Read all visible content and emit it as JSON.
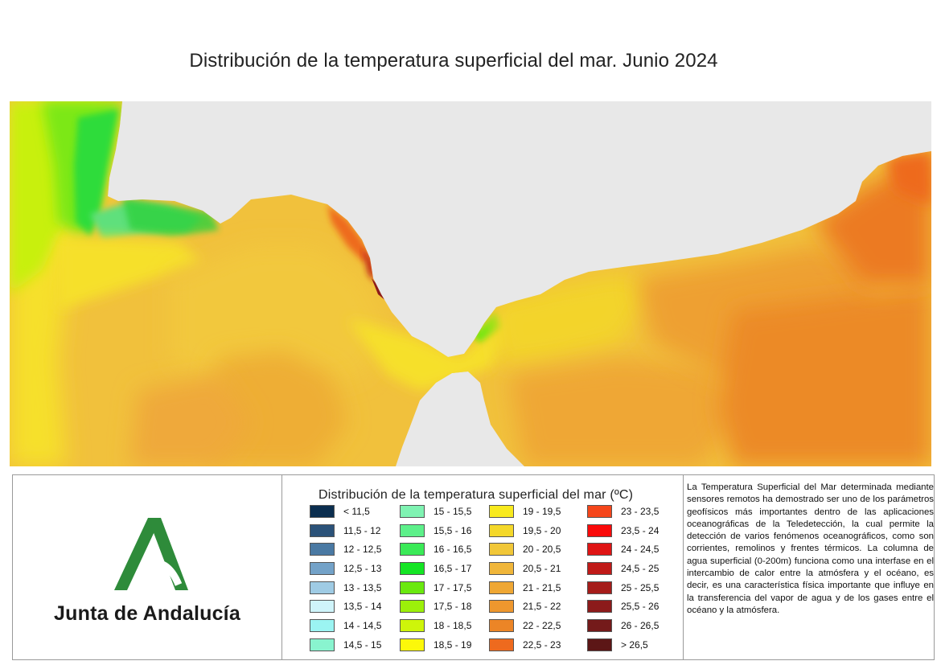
{
  "title": "Distribución de la temperatura superficial del mar. Junio 2024",
  "colors": {
    "land": "#e8e8e8",
    "base_sea": "#f1bf3a",
    "accent_green": "#2e8b3a"
  },
  "legend": {
    "title": "Distribución de la temperatura superficial del mar (ºC)",
    "columns": [
      [
        {
          "label": "< 11,5",
          "color": "#0b2e4f"
        },
        {
          "label": "11,5 - 12",
          "color": "#2b5279"
        },
        {
          "label": "12 - 12,5",
          "color": "#4a79a3"
        },
        {
          "label": "12,5 - 13",
          "color": "#73a2c8"
        },
        {
          "label": "13 - 13,5",
          "color": "#9fcbe4"
        },
        {
          "label": "13,5 - 14",
          "color": "#cff4fa"
        },
        {
          "label": "14 - 14,5",
          "color": "#9bf4f2"
        },
        {
          "label": "14,5 - 15",
          "color": "#89f4cf"
        }
      ],
      [
        {
          "label": "15 - 15,5",
          "color": "#7ff3b2"
        },
        {
          "label": "15,5 - 16",
          "color": "#5df08a"
        },
        {
          "label": "16 - 16,5",
          "color": "#3aea57"
        },
        {
          "label": "16,5 - 17",
          "color": "#14e524"
        },
        {
          "label": "17 - 17,5",
          "color": "#6ae90f"
        },
        {
          "label": "17,5 - 18",
          "color": "#9cf00a"
        },
        {
          "label": "18 - 18,5",
          "color": "#cef50a"
        },
        {
          "label": "18,5 - 19",
          "color": "#fcf80a"
        }
      ],
      [
        {
          "label": "19 - 19,5",
          "color": "#f8ea1e"
        },
        {
          "label": "19,5 - 20",
          "color": "#f4d82a"
        },
        {
          "label": "20 - 20,5",
          "color": "#f1c738"
        },
        {
          "label": "20,5 - 21",
          "color": "#f0b63a"
        },
        {
          "label": "21 - 21,5",
          "color": "#efa734"
        },
        {
          "label": "21,5 - 22",
          "color": "#ee972e"
        },
        {
          "label": "22 - 22,5",
          "color": "#ec8526"
        },
        {
          "label": "22,5 - 23",
          "color": "#ee6a1e"
        }
      ],
      [
        {
          "label": "23 - 23,5",
          "color": "#f5461b"
        },
        {
          "label": "23,5 - 24",
          "color": "#fa0a0a"
        },
        {
          "label": "24 - 24,5",
          "color": "#df1414"
        },
        {
          "label": "24,5 - 25",
          "color": "#c01a18"
        },
        {
          "label": "25 - 25,5",
          "color": "#a51c1a"
        },
        {
          "label": "25,5 - 26",
          "color": "#8c1b1b"
        },
        {
          "label": "26 - 26,5",
          "color": "#741a1a"
        },
        {
          "label": "> 26,5",
          "color": "#5c1616"
        }
      ]
    ]
  },
  "logo": {
    "name": "Junta de Andalucía"
  },
  "description": "La Temperatura Superficial del Mar determinada mediante sensores remotos ha demostrado ser uno de los parámetros geofísicos más importantes dentro de las aplicaciones oceanográficas de la Teledetección, la cual permite la detección de varios fenómenos oceanográficos, como son corrientes, remolinos y frentes térmicos. La columna de agua superficial (0-200m) funciona como una interfase en el intercambio de calor entre la atmósfera y el océano, es decir, es una característica física importante que influye en la transferencia del vapor de agua y de los gases entre el océano y la atmósfera."
}
